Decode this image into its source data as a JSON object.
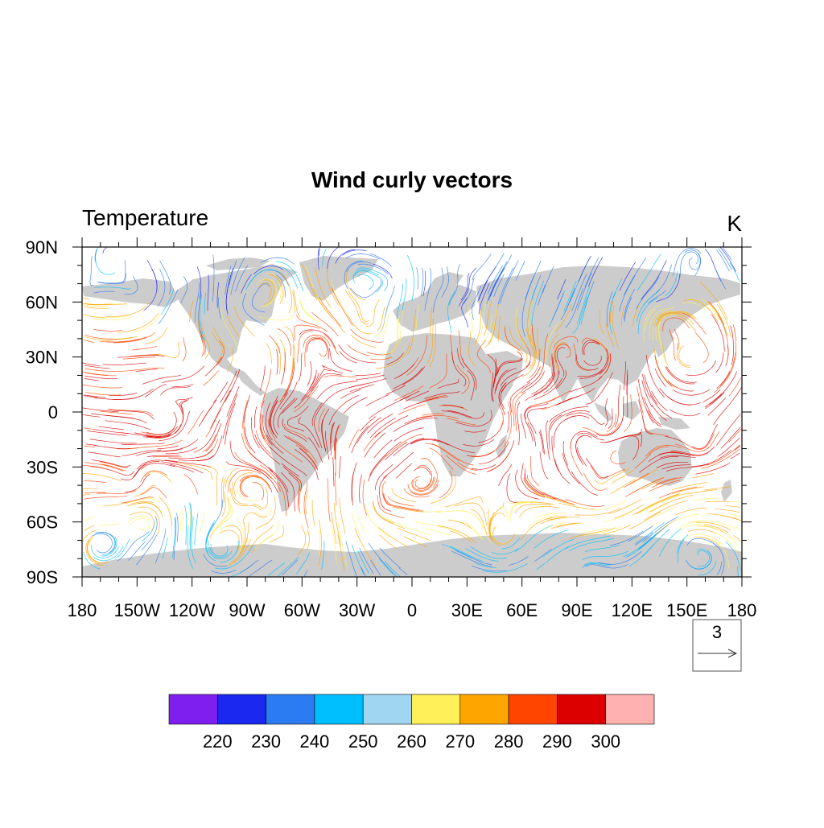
{
  "title": "Wind curly vectors",
  "left_string": "Temperature",
  "right_string": "K",
  "map": {
    "projection": "cylindrical-equidistant",
    "lon_range": [
      -180,
      180
    ],
    "lat_range": [
      -90,
      90
    ],
    "land_color": "#cccccc",
    "ocean_color": "#ffffff",
    "x_tick_labels": [
      {
        "lon": -180,
        "label": "180"
      },
      {
        "lon": -150,
        "label": "150W"
      },
      {
        "lon": -120,
        "label": "120W"
      },
      {
        "lon": -90,
        "label": "90W"
      },
      {
        "lon": -60,
        "label": "60W"
      },
      {
        "lon": -30,
        "label": "30W"
      },
      {
        "lon": 0,
        "label": "0"
      },
      {
        "lon": 30,
        "label": "30E"
      },
      {
        "lon": 60,
        "label": "60E"
      },
      {
        "lon": 90,
        "label": "90E"
      },
      {
        "lon": 120,
        "label": "120E"
      },
      {
        "lon": 150,
        "label": "150E"
      },
      {
        "lon": 180,
        "label": "180"
      }
    ],
    "y_tick_labels": [
      {
        "lat": 90,
        "label": "90N"
      },
      {
        "lat": 60,
        "label": "60N"
      },
      {
        "lat": 30,
        "label": "30N"
      },
      {
        "lat": 0,
        "label": "0"
      },
      {
        "lat": -30,
        "label": "30S"
      },
      {
        "lat": -60,
        "label": "60S"
      },
      {
        "lat": -90,
        "label": "90S"
      }
    ]
  },
  "reference_vector": {
    "magnitude": "3"
  },
  "colorbar": {
    "colors": [
      "#7f1fef",
      "#1a28f0",
      "#2b7bf2",
      "#00bfff",
      "#a0d6f2",
      "#fff05a",
      "#ffa500",
      "#ff4500",
      "#dc0000",
      "#ffb0b0"
    ],
    "boundaries": [
      "220",
      "230",
      "240",
      "250",
      "260",
      "270",
      "280",
      "290",
      "300"
    ]
  }
}
